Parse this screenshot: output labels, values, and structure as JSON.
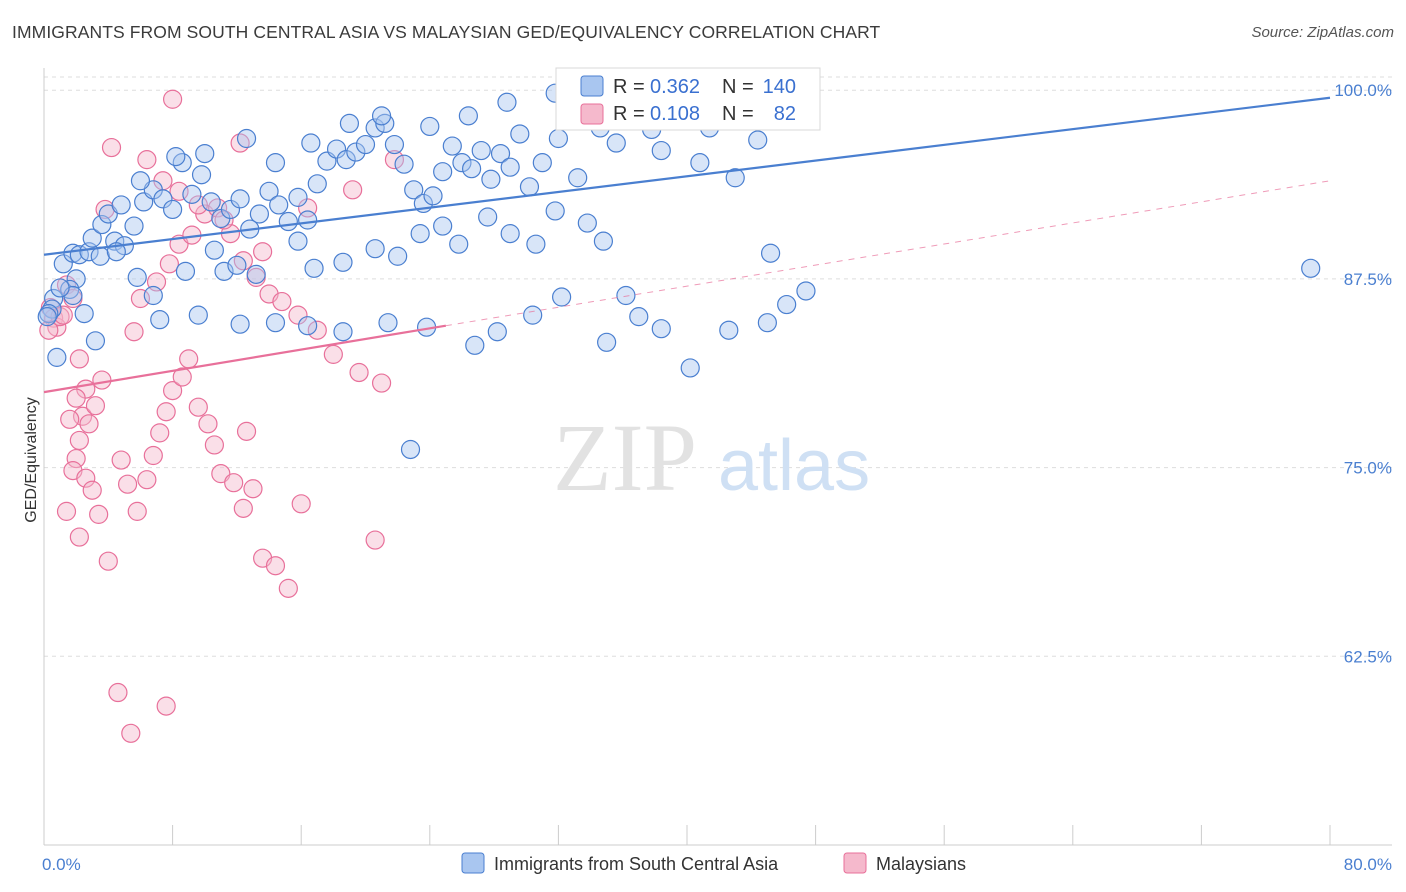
{
  "title": "IMMIGRANTS FROM SOUTH CENTRAL ASIA VS MALAYSIAN GED/EQUIVALENCY CORRELATION CHART",
  "source": "Source: ZipAtlas.com",
  "watermark": {
    "zip": "ZIP",
    "atlas": "atlas"
  },
  "colors": {
    "blue": "#4a7fd0",
    "blue_fill": "#a9c6f0",
    "pink": "#e8709a",
    "pink_fill": "#f5b9cc",
    "grid": "#dddddd"
  },
  "legend_top": {
    "rows": [
      {
        "r_label": "R =",
        "r_value": "0.362",
        "n_label": "N =",
        "n_value": "140"
      },
      {
        "r_label": "R =",
        "r_value": "0.108",
        "n_label": "N =",
        "n_value": "82"
      }
    ]
  },
  "legend_bottom": {
    "items": [
      "Immigrants from South Central Asia",
      "Malaysians"
    ]
  },
  "chart_data": {
    "type": "scatter",
    "xlabel": "",
    "ylabel": "GED/Equivalency",
    "xlim": [
      0,
      80
    ],
    "ylim": [
      50,
      102
    ],
    "x_tick_labels": [
      "0.0%",
      "80.0%"
    ],
    "y_ticks": [
      62.5,
      75.0,
      87.5,
      100.0
    ],
    "y_tick_labels": [
      "62.5%",
      "75.0%",
      "87.5%",
      "100.0%"
    ],
    "grid": true,
    "legend_placement": "top-center",
    "series": [
      {
        "name": "Immigrants from South Central Asia",
        "color": "blue",
        "trend": {
          "x0": 0,
          "y0": 89.1,
          "x1": 80,
          "y1": 99.5
        },
        "points": [
          [
            0.6,
            86.2
          ],
          [
            0.5,
            85.5
          ],
          [
            0.3,
            85.2
          ],
          [
            0.2,
            85.0
          ],
          [
            1.2,
            88.5
          ],
          [
            1.8,
            89.2
          ],
          [
            2.2,
            89.1
          ],
          [
            2.8,
            89.3
          ],
          [
            3.0,
            90.2
          ],
          [
            3.6,
            91.1
          ],
          [
            4.0,
            91.8
          ],
          [
            4.4,
            90.0
          ],
          [
            3.5,
            89.0
          ],
          [
            2.0,
            87.5
          ],
          [
            1.6,
            86.8
          ],
          [
            1.8,
            86.4
          ],
          [
            1.0,
            86.9
          ],
          [
            2.5,
            85.2
          ],
          [
            3.2,
            83.4
          ],
          [
            0.8,
            82.3
          ],
          [
            5.0,
            89.7
          ],
          [
            5.6,
            91.0
          ],
          [
            6.2,
            92.6
          ],
          [
            6.8,
            93.4
          ],
          [
            7.4,
            92.8
          ],
          [
            8.0,
            92.1
          ],
          [
            8.6,
            95.2
          ],
          [
            9.2,
            93.1
          ],
          [
            9.8,
            94.4
          ],
          [
            10.4,
            92.6
          ],
          [
            11.0,
            91.5
          ],
          [
            11.6,
            92.1
          ],
          [
            12.2,
            92.8
          ],
          [
            12.8,
            90.8
          ],
          [
            13.4,
            91.8
          ],
          [
            14.0,
            93.3
          ],
          [
            14.6,
            92.4
          ],
          [
            15.2,
            91.3
          ],
          [
            15.8,
            92.9
          ],
          [
            16.4,
            91.4
          ],
          [
            17.0,
            93.8
          ],
          [
            17.6,
            95.3
          ],
          [
            18.2,
            96.1
          ],
          [
            18.8,
            95.4
          ],
          [
            19.4,
            95.9
          ],
          [
            20.0,
            96.4
          ],
          [
            20.6,
            97.5
          ],
          [
            21.2,
            97.8
          ],
          [
            21.8,
            96.4
          ],
          [
            22.4,
            95.1
          ],
          [
            23.0,
            93.4
          ],
          [
            23.6,
            92.5
          ],
          [
            24.2,
            93.0
          ],
          [
            24.8,
            94.6
          ],
          [
            25.4,
            96.3
          ],
          [
            26.0,
            95.2
          ],
          [
            26.6,
            94.8
          ],
          [
            27.2,
            96.0
          ],
          [
            27.8,
            94.1
          ],
          [
            28.4,
            95.8
          ],
          [
            29.0,
            94.9
          ],
          [
            29.6,
            97.1
          ],
          [
            30.2,
            93.6
          ],
          [
            31.0,
            95.2
          ],
          [
            32.0,
            96.8
          ],
          [
            33.2,
            94.2
          ],
          [
            34.6,
            97.5
          ],
          [
            35.6,
            96.5
          ],
          [
            36.4,
            99.4
          ],
          [
            36.6,
            98.6
          ],
          [
            37.8,
            97.4
          ],
          [
            38.4,
            96.0
          ],
          [
            39.6,
            98.8
          ],
          [
            40.8,
            95.2
          ],
          [
            41.4,
            97.5
          ],
          [
            43.0,
            94.2
          ],
          [
            44.4,
            96.7
          ],
          [
            45.2,
            89.2
          ],
          [
            47.4,
            86.7
          ],
          [
            4.5,
            89.3
          ],
          [
            5.8,
            87.6
          ],
          [
            6.8,
            86.4
          ],
          [
            8.8,
            88.0
          ],
          [
            10.6,
            89.4
          ],
          [
            11.2,
            88.0
          ],
          [
            12.0,
            88.4
          ],
          [
            13.2,
            87.8
          ],
          [
            15.8,
            90.0
          ],
          [
            16.8,
            88.2
          ],
          [
            18.6,
            88.6
          ],
          [
            20.6,
            89.5
          ],
          [
            22.0,
            89.0
          ],
          [
            23.4,
            90.5
          ],
          [
            24.8,
            91.0
          ],
          [
            25.8,
            89.8
          ],
          [
            27.6,
            91.6
          ],
          [
            29.0,
            90.5
          ],
          [
            30.6,
            89.8
          ],
          [
            31.8,
            92.0
          ],
          [
            33.8,
            91.2
          ],
          [
            34.8,
            90.0
          ],
          [
            7.2,
            84.8
          ],
          [
            9.6,
            85.1
          ],
          [
            12.2,
            84.5
          ],
          [
            14.4,
            84.6
          ],
          [
            16.4,
            84.4
          ],
          [
            18.6,
            84.0
          ],
          [
            21.4,
            84.6
          ],
          [
            23.8,
            84.3
          ],
          [
            26.8,
            83.1
          ],
          [
            28.2,
            84.0
          ],
          [
            30.4,
            85.1
          ],
          [
            32.2,
            86.3
          ],
          [
            35.0,
            83.3
          ],
          [
            36.2,
            86.4
          ],
          [
            37.0,
            85.0
          ],
          [
            38.4,
            84.2
          ],
          [
            40.2,
            81.6
          ],
          [
            42.6,
            84.1
          ],
          [
            45.0,
            84.6
          ],
          [
            46.2,
            85.8
          ],
          [
            22.8,
            76.2
          ],
          [
            78.8,
            88.2
          ],
          [
            4.8,
            92.4
          ],
          [
            6.0,
            94.0
          ],
          [
            8.2,
            95.6
          ],
          [
            10.0,
            95.8
          ],
          [
            12.6,
            96.8
          ],
          [
            14.4,
            95.2
          ],
          [
            16.6,
            96.5
          ],
          [
            19.0,
            97.8
          ],
          [
            21.0,
            98.3
          ],
          [
            24.0,
            97.6
          ],
          [
            26.4,
            98.3
          ],
          [
            28.8,
            99.2
          ],
          [
            31.8,
            99.8
          ],
          [
            34.2,
            99.5
          ]
        ]
      },
      {
        "name": "Malaysians",
        "color": "pink",
        "trend": {
          "x0": 0,
          "y0": 80.0,
          "x1": 25,
          "y1": 84.4
        },
        "trend_dashed": {
          "x0": 25,
          "y0": 84.4,
          "x1": 80,
          "y1": 94.0
        },
        "points": [
          [
            0.4,
            85.6
          ],
          [
            0.6,
            84.9
          ],
          [
            0.8,
            84.3
          ],
          [
            0.3,
            84.1
          ],
          [
            1.0,
            85.0
          ],
          [
            1.4,
            87.1
          ],
          [
            1.8,
            86.2
          ],
          [
            1.2,
            85.1
          ],
          [
            2.2,
            82.2
          ],
          [
            2.6,
            80.2
          ],
          [
            2.0,
            79.6
          ],
          [
            2.4,
            78.4
          ],
          [
            2.8,
            77.9
          ],
          [
            3.2,
            79.1
          ],
          [
            3.6,
            80.8
          ],
          [
            1.6,
            78.2
          ],
          [
            2.2,
            76.8
          ],
          [
            2.0,
            75.6
          ],
          [
            1.8,
            74.8
          ],
          [
            2.6,
            74.3
          ],
          [
            3.0,
            73.5
          ],
          [
            1.4,
            72.1
          ],
          [
            2.2,
            70.4
          ],
          [
            3.4,
            71.9
          ],
          [
            4.0,
            68.8
          ],
          [
            4.8,
            75.5
          ],
          [
            5.2,
            73.9
          ],
          [
            5.8,
            72.1
          ],
          [
            6.4,
            74.2
          ],
          [
            6.8,
            75.8
          ],
          [
            7.2,
            77.3
          ],
          [
            7.6,
            78.7
          ],
          [
            8.0,
            80.1
          ],
          [
            8.6,
            81.0
          ],
          [
            9.0,
            82.2
          ],
          [
            9.6,
            79.0
          ],
          [
            10.2,
            77.9
          ],
          [
            10.6,
            76.5
          ],
          [
            11.0,
            74.6
          ],
          [
            11.8,
            74.0
          ],
          [
            12.4,
            72.3
          ],
          [
            13.0,
            73.6
          ],
          [
            13.6,
            69.0
          ],
          [
            14.4,
            68.5
          ],
          [
            15.2,
            67.0
          ],
          [
            16.0,
            72.6
          ],
          [
            5.6,
            84.0
          ],
          [
            6.0,
            86.2
          ],
          [
            7.0,
            87.3
          ],
          [
            7.8,
            88.5
          ],
          [
            8.4,
            89.8
          ],
          [
            9.2,
            90.4
          ],
          [
            10.0,
            91.8
          ],
          [
            10.8,
            92.2
          ],
          [
            11.6,
            90.5
          ],
          [
            12.4,
            88.7
          ],
          [
            13.2,
            87.6
          ],
          [
            14.0,
            86.5
          ],
          [
            14.8,
            86.0
          ],
          [
            15.8,
            85.1
          ],
          [
            17.0,
            84.1
          ],
          [
            18.0,
            82.5
          ],
          [
            19.6,
            81.3
          ],
          [
            21.0,
            80.6
          ],
          [
            3.8,
            92.1
          ],
          [
            4.2,
            96.2
          ],
          [
            6.4,
            95.4
          ],
          [
            7.4,
            94.0
          ],
          [
            8.4,
            93.3
          ],
          [
            9.6,
            92.4
          ],
          [
            11.2,
            91.4
          ],
          [
            12.2,
            96.5
          ],
          [
            13.6,
            89.3
          ],
          [
            16.4,
            92.2
          ],
          [
            19.2,
            93.4
          ],
          [
            21.8,
            95.4
          ],
          [
            4.6,
            60.1
          ],
          [
            7.6,
            59.2
          ],
          [
            5.4,
            57.4
          ],
          [
            8.0,
            99.4
          ],
          [
            20.6,
            70.2
          ],
          [
            12.6,
            77.4
          ]
        ]
      }
    ]
  }
}
